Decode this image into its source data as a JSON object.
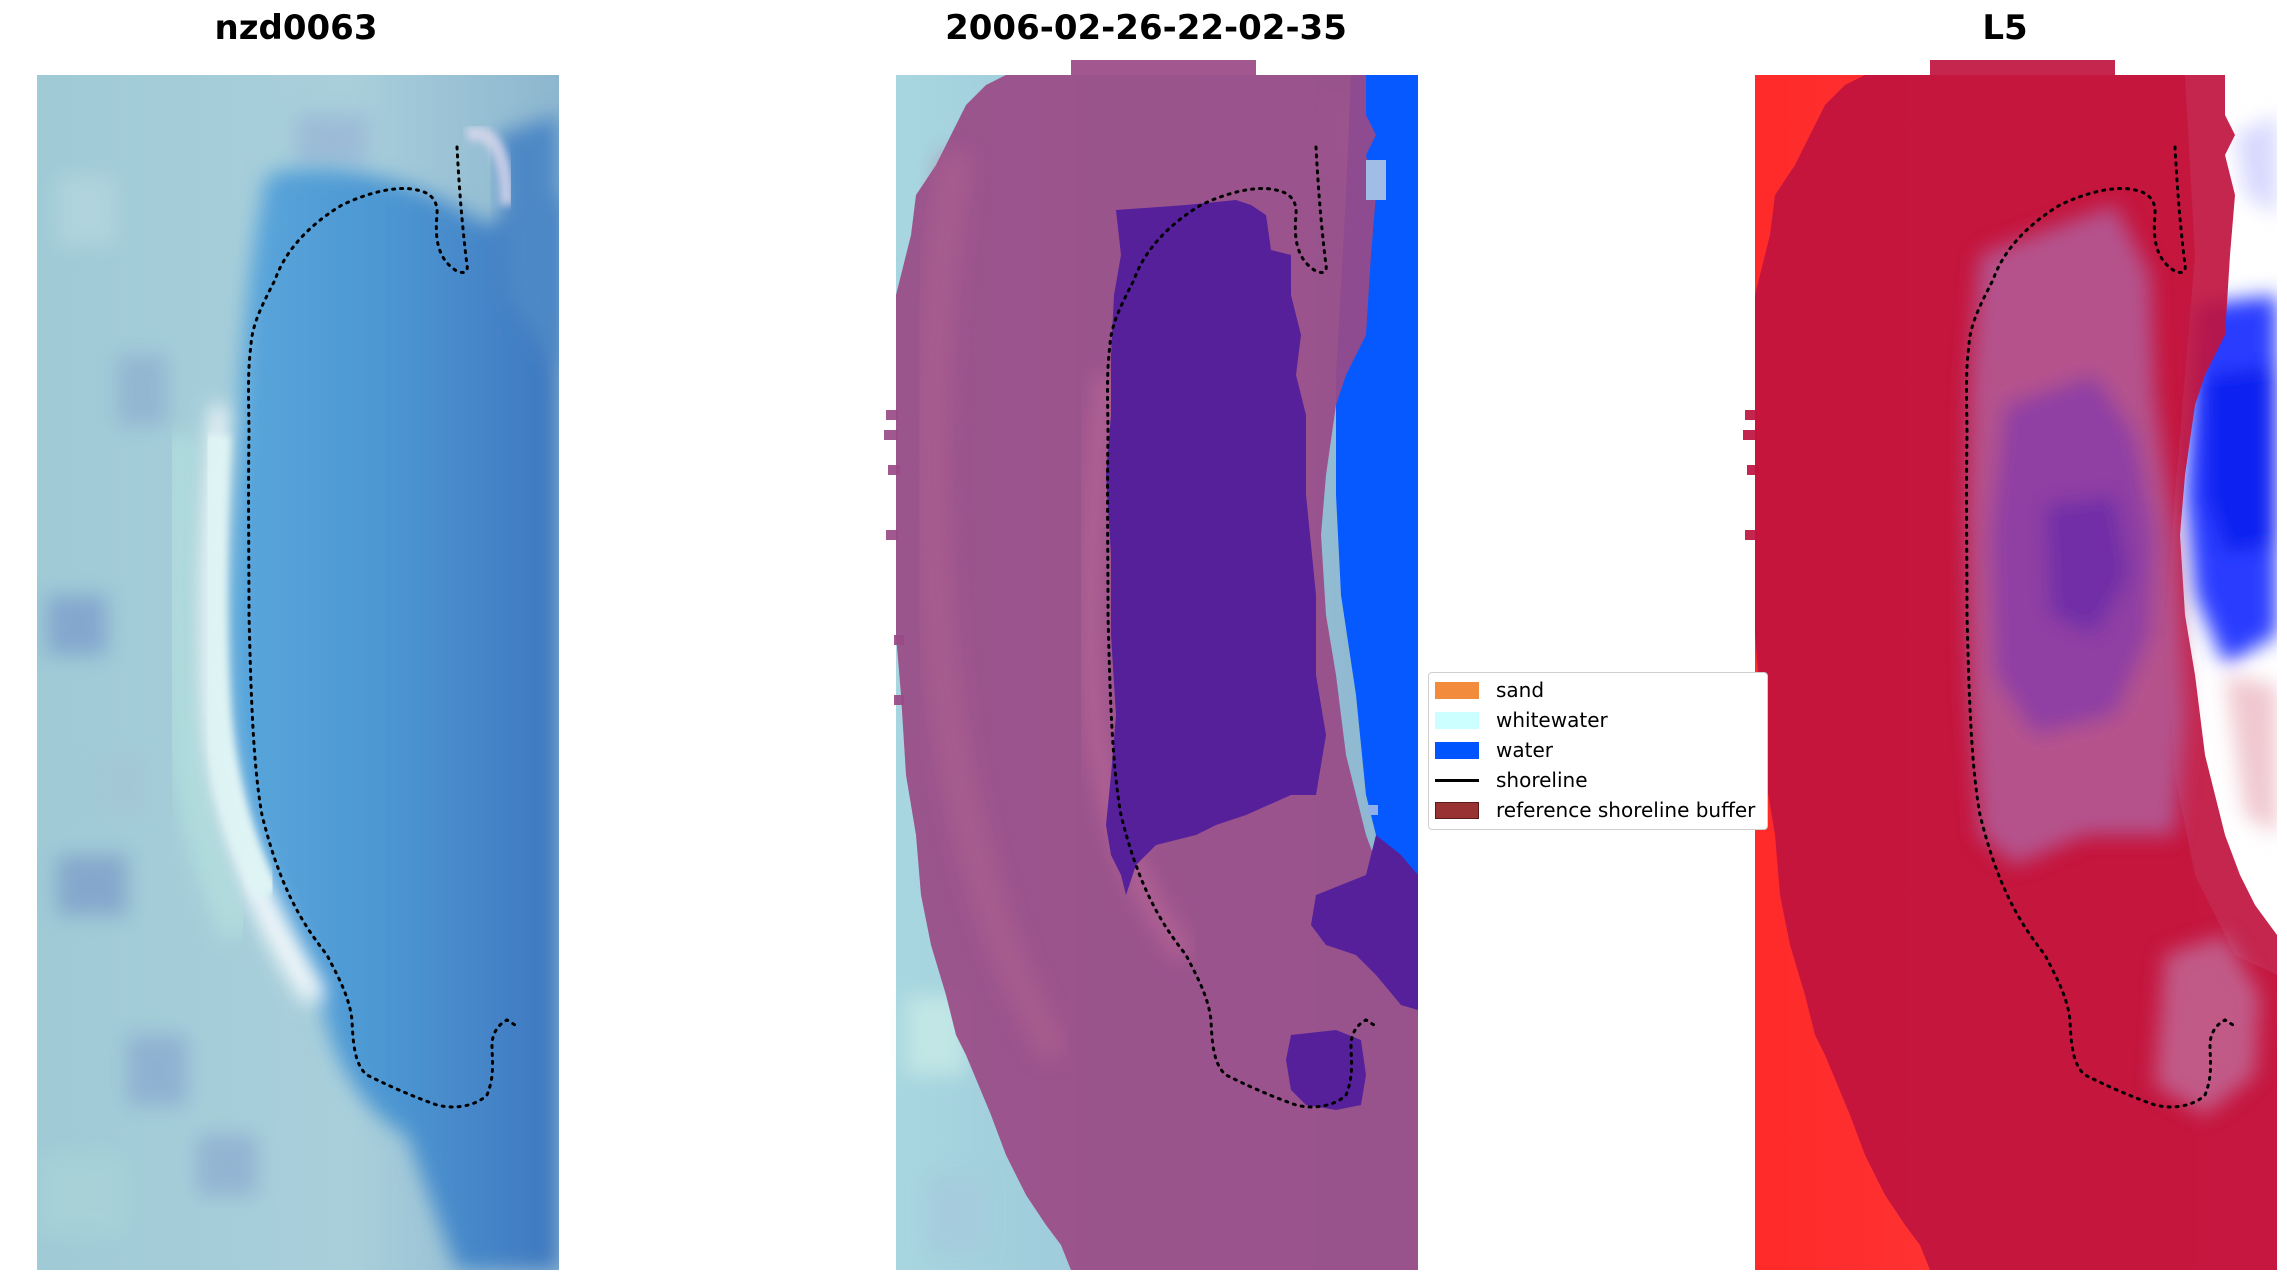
{
  "panels": [
    {
      "title": "nzd0063",
      "kind": "rgb-image"
    },
    {
      "title": "2006-02-26-22-02-35",
      "kind": "classified-image"
    },
    {
      "title": "L5",
      "kind": "index-image"
    }
  ],
  "legend": {
    "items": [
      {
        "label": "sand",
        "color": "#f28b3c"
      },
      {
        "label": "whitewater",
        "color": "#ccffff"
      },
      {
        "label": "water",
        "color": "#0055ff"
      },
      {
        "label": "shoreline",
        "color": "#000000",
        "style": "line"
      },
      {
        "label": "reference shoreline buffer",
        "color": "#993333"
      }
    ]
  }
}
